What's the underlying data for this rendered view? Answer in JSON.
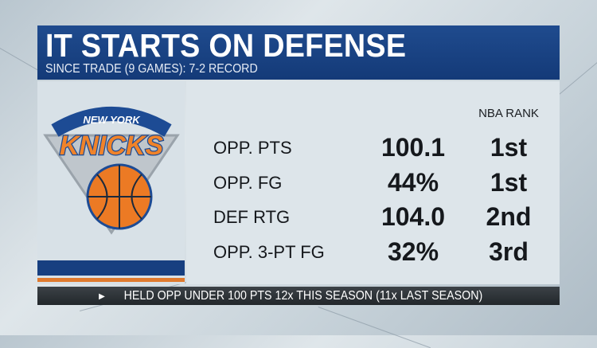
{
  "header": {
    "title": "IT STARTS ON DEFENSE",
    "subtitle": "SINCE TRADE (9 GAMES): 7-2 RECORD"
  },
  "logo": {
    "text_top": "NEW YORK",
    "text_main": "KNICKS",
    "icon": "knicks-logo"
  },
  "table": {
    "rank_header": "NBA RANK",
    "rows": [
      {
        "label": "OPP. PTS",
        "value": "100.1",
        "rank": "1st"
      },
      {
        "label": "OPP. FG",
        "value": "44%",
        "rank": "1st"
      },
      {
        "label": "DEF RTG",
        "value": "104.0",
        "rank": "2nd"
      },
      {
        "label": "OPP. 3-PT FG",
        "value": "32%",
        "rank": "3rd"
      }
    ]
  },
  "footer": {
    "icon": "triangle-right-icon",
    "text": "HELD OPP UNDER 100 PTS 12x THIS SEASON (11x LAST SEASON)"
  },
  "colors": {
    "blue": "#173f80",
    "orange": "#e07a2e"
  }
}
